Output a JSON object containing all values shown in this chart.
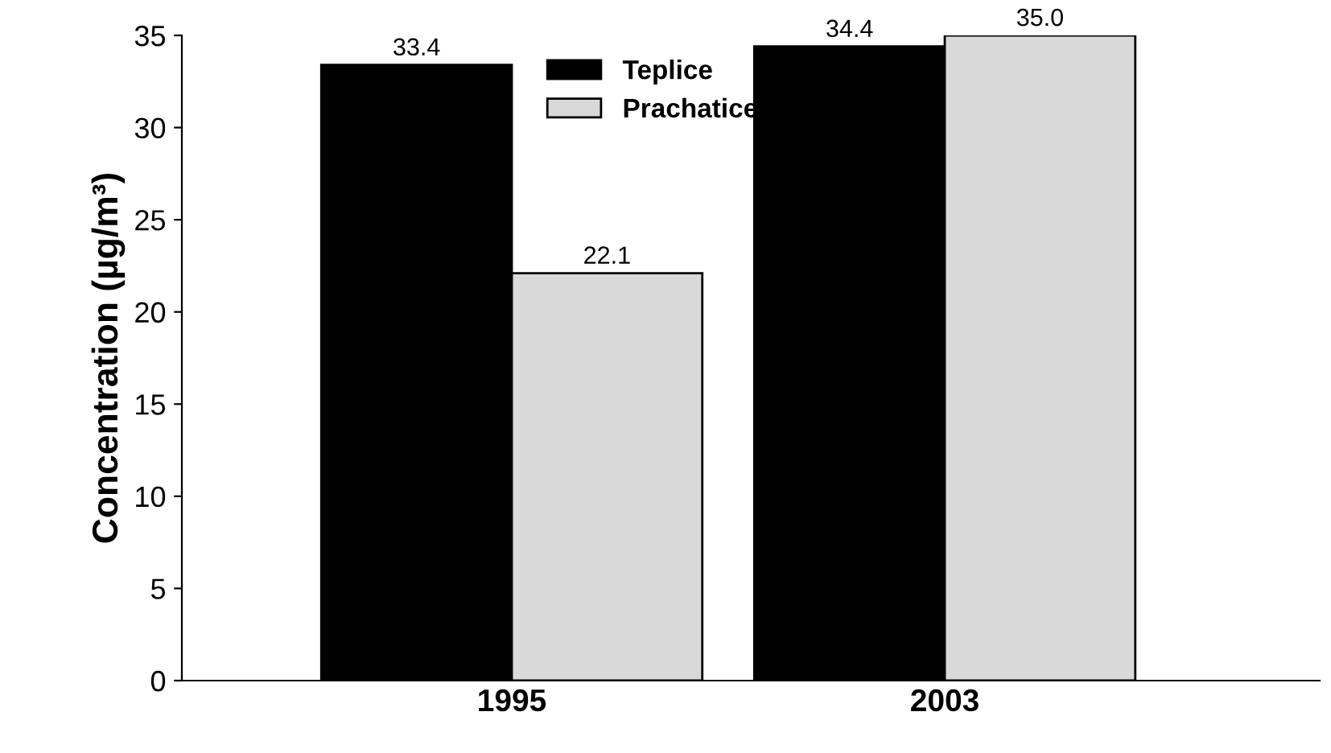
{
  "chart_data": {
    "type": "bar",
    "ylabel": "Concentration (µg/m³)",
    "categories": [
      "1995",
      "2003"
    ],
    "series": [
      {
        "name": "Teplice",
        "color": "#000000",
        "values": [
          33.4,
          34.4
        ],
        "value_labels": [
          "33.4",
          "34.4"
        ]
      },
      {
        "name": "Prachatice",
        "color": "#d9d9d9",
        "values": [
          22.1,
          35.0
        ],
        "value_labels": [
          "22.1",
          "35.0"
        ]
      }
    ],
    "ylim": [
      0,
      35
    ],
    "yticks": [
      0,
      5,
      10,
      15,
      20,
      25,
      30,
      35
    ],
    "grid": false,
    "legend": "top"
  }
}
